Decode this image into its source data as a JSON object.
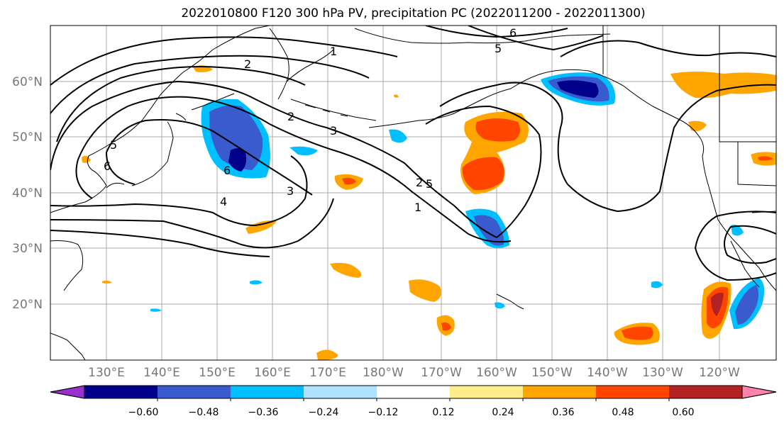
{
  "title": "2022010800 F120 300 hPa PV, precipitation PC (2022011200 - 2022011300)",
  "lat_labels": [
    "60°N",
    "50°N",
    "40°N",
    "30°N",
    "20°N"
  ],
  "lon_labels": [
    "130°E",
    "140°E",
    "150°E",
    "160°E",
    "170°E",
    "180°W",
    "170°W",
    "160°W",
    "150°W",
    "140°W",
    "130°W",
    "120°W"
  ],
  "contour_labels": [
    "2",
    "1",
    "6",
    "5",
    "5",
    "6",
    "6",
    "2",
    "3",
    "4",
    "3",
    "1",
    "5",
    "2"
  ],
  "colorbar": {
    "colors": [
      "#9932cc",
      "#00008b",
      "#3a5bcd",
      "#00bfff",
      "#b0e2ff",
      "#ffffff",
      "#ffec8b",
      "#ffa500",
      "#ff4500",
      "#b22222",
      "#ff82ab"
    ],
    "tick_labels": [
      "−0.60",
      "−0.48",
      "−0.36",
      "−0.24",
      "−0.12",
      "0.12",
      "0.24",
      "0.36",
      "0.48",
      "0.60"
    ]
  }
}
